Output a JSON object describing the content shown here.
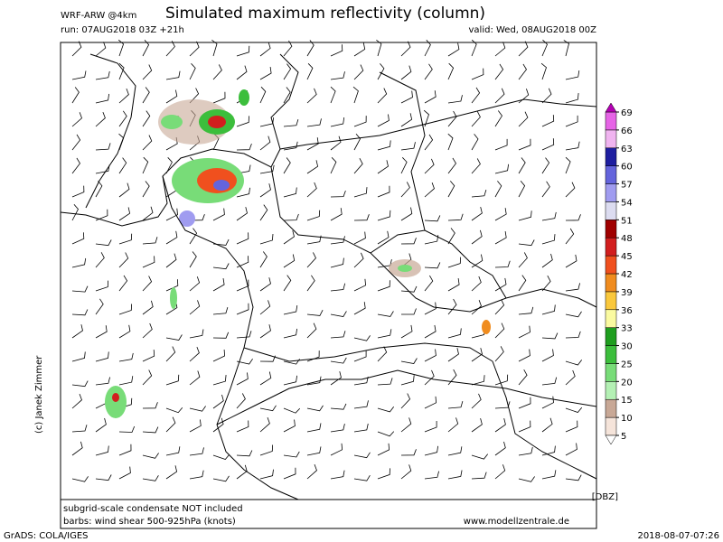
{
  "header": {
    "model": "WRF-ARW @4km",
    "title": "Simulated maximum reflectivity (column)",
    "run": "run: 07AUG2018 03Z +21h",
    "valid": "valid: Wed, 08AUG2018 00Z"
  },
  "colorbar": {
    "unit": "[DBZ]",
    "levels": [
      5,
      10,
      15,
      20,
      25,
      30,
      33,
      36,
      39,
      42,
      45,
      48,
      51,
      54,
      57,
      60,
      63,
      66,
      69
    ],
    "colors": [
      "#f5e4da",
      "#c8a896",
      "#b4f0b4",
      "#78dc78",
      "#3cbe3c",
      "#1e9e1e",
      "#fafaa0",
      "#fac83c",
      "#f08c1e",
      "#f0501e",
      "#d21e1e",
      "#a00000",
      "#dcdcf0",
      "#a09cf0",
      "#6464dc",
      "#1e1ea0",
      "#f0b4f0",
      "#e664e6"
    ],
    "below_color": "#ffffff",
    "above_color": "#b400b4"
  },
  "footer": {
    "condensate": "subgrid-scale condensate NOT included",
    "barbs": "barbs: wind shear 500-925hPa (knots)",
    "website": "www.modellzentrale.de",
    "credit": "(c) Janek Zimmer",
    "software": "GrADS: COLA/IGES",
    "timestamp": "2018-08-07-07:26"
  }
}
